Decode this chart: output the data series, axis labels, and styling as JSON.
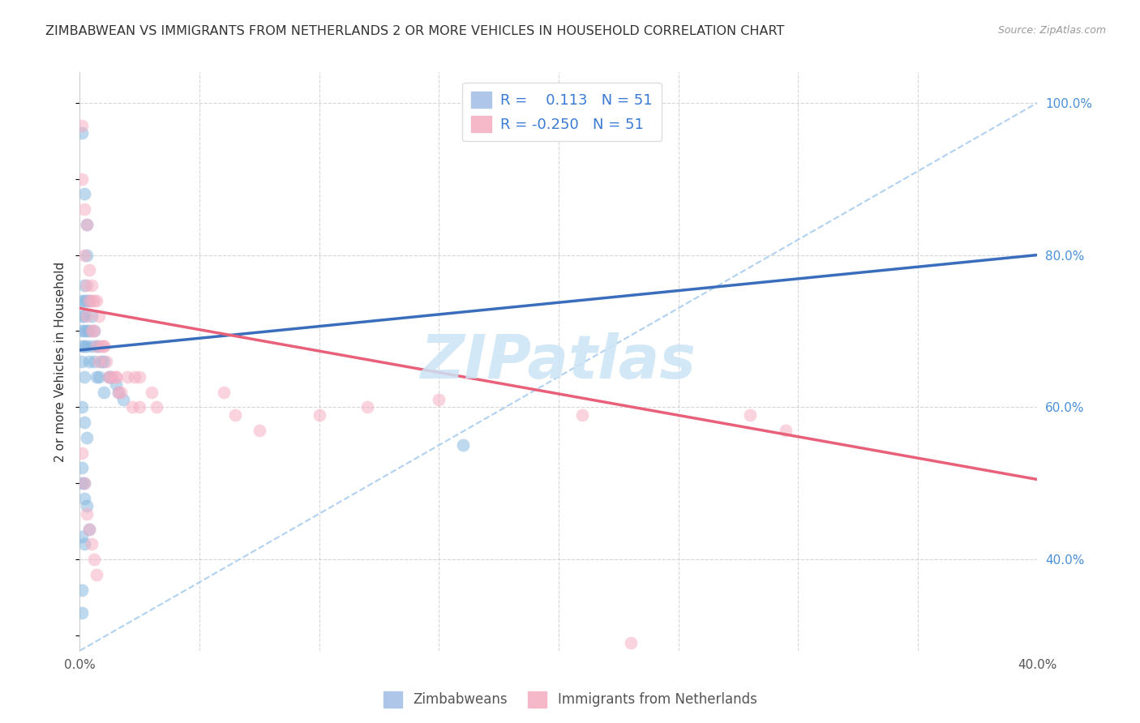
{
  "title": "ZIMBABWEAN VS IMMIGRANTS FROM NETHERLANDS 2 OR MORE VEHICLES IN HOUSEHOLD CORRELATION CHART",
  "source": "Source: ZipAtlas.com",
  "ylabel": "2 or more Vehicles in Household",
  "xlim": [
    0.0,
    0.4
  ],
  "ylim": [
    0.28,
    1.04
  ],
  "xticks": [
    0.0,
    0.05,
    0.1,
    0.15,
    0.2,
    0.25,
    0.3,
    0.35,
    0.4
  ],
  "xticklabels": [
    "0.0%",
    "",
    "",
    "",
    "",
    "",
    "",
    "",
    "40.0%"
  ],
  "yticks_right": [
    0.4,
    0.6,
    0.8,
    1.0
  ],
  "yticklabels_right": [
    "40.0%",
    "60.0%",
    "80.0%",
    "100.0%"
  ],
  "blue_scatter_color": "#89b8e0",
  "pink_scatter_color": "#f5afc4",
  "blue_line_color": "#3a6ebc",
  "pink_line_color": "#e8607a",
  "ref_line_color": "#a8ccee",
  "watermark_color": "#cce4f5",
  "blue_scatter_x": [
    0.001,
    0.001,
    0.001,
    0.001,
    0.001,
    0.002,
    0.002,
    0.002,
    0.002,
    0.002,
    0.002,
    0.003,
    0.003,
    0.003,
    0.003,
    0.004,
    0.004,
    0.004,
    0.005,
    0.005,
    0.006,
    0.006,
    0.007,
    0.007,
    0.008,
    0.008,
    0.009,
    0.01,
    0.01,
    0.012,
    0.013,
    0.015,
    0.016,
    0.018,
    0.001,
    0.002,
    0.003,
    0.001,
    0.002,
    0.003,
    0.001,
    0.002,
    0.001,
    0.16,
    0.002,
    0.001,
    0.002,
    0.003,
    0.004,
    0.001,
    0.001
  ],
  "blue_scatter_y": [
    0.74,
    0.72,
    0.7,
    0.68,
    0.66,
    0.76,
    0.74,
    0.72,
    0.7,
    0.68,
    0.64,
    0.8,
    0.74,
    0.7,
    0.68,
    0.74,
    0.7,
    0.66,
    0.72,
    0.68,
    0.7,
    0.66,
    0.68,
    0.64,
    0.68,
    0.64,
    0.66,
    0.66,
    0.62,
    0.64,
    0.64,
    0.63,
    0.62,
    0.61,
    0.96,
    0.88,
    0.84,
    0.6,
    0.58,
    0.56,
    0.5,
    0.48,
    0.43,
    0.55,
    0.42,
    0.52,
    0.5,
    0.47,
    0.44,
    0.36,
    0.33
  ],
  "pink_scatter_x": [
    0.001,
    0.001,
    0.002,
    0.002,
    0.003,
    0.003,
    0.003,
    0.004,
    0.004,
    0.005,
    0.005,
    0.006,
    0.006,
    0.007,
    0.007,
    0.008,
    0.008,
    0.009,
    0.01,
    0.011,
    0.012,
    0.013,
    0.015,
    0.016,
    0.02,
    0.023,
    0.025,
    0.025,
    0.03,
    0.032,
    0.06,
    0.065,
    0.075,
    0.1,
    0.12,
    0.15,
    0.28,
    0.295,
    0.005,
    0.01,
    0.015,
    0.017,
    0.022,
    0.001,
    0.002,
    0.003,
    0.004,
    0.005,
    0.006,
    0.007,
    0.21,
    0.23
  ],
  "pink_scatter_y": [
    0.97,
    0.9,
    0.86,
    0.8,
    0.84,
    0.76,
    0.72,
    0.78,
    0.74,
    0.76,
    0.7,
    0.74,
    0.7,
    0.74,
    0.68,
    0.72,
    0.66,
    0.68,
    0.68,
    0.66,
    0.64,
    0.64,
    0.64,
    0.62,
    0.64,
    0.64,
    0.64,
    0.6,
    0.62,
    0.6,
    0.62,
    0.59,
    0.57,
    0.59,
    0.6,
    0.61,
    0.59,
    0.57,
    0.74,
    0.68,
    0.64,
    0.62,
    0.6,
    0.54,
    0.5,
    0.46,
    0.44,
    0.42,
    0.4,
    0.38,
    0.59,
    0.29
  ],
  "blue_trend_x": [
    0.0,
    0.4
  ],
  "blue_trend_y": [
    0.675,
    0.8
  ],
  "pink_trend_x": [
    0.0,
    0.4
  ],
  "pink_trend_y": [
    0.73,
    0.505
  ],
  "ref_line_x": [
    0.0,
    0.4
  ],
  "ref_line_y": [
    0.28,
    1.0
  ]
}
